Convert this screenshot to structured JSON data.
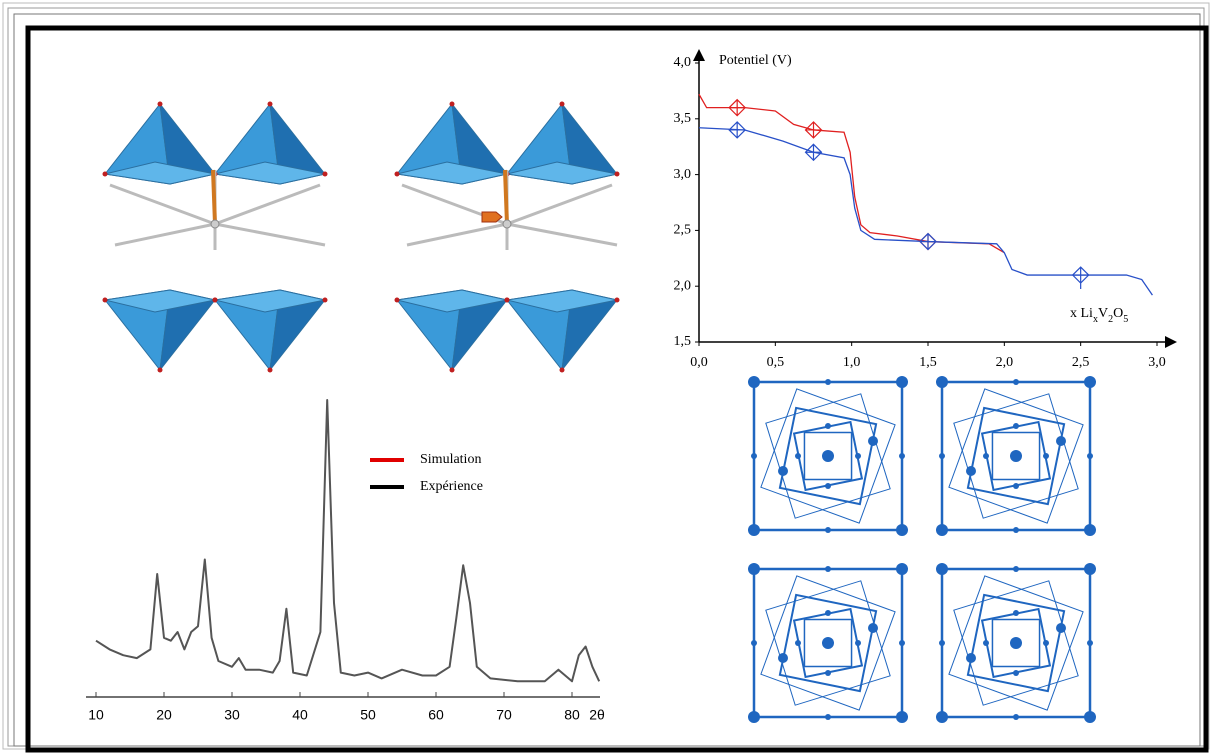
{
  "chart_data": [
    {
      "type": "line",
      "y_label": "Potentiel (V)",
      "x_label_parts": [
        "x Li",
        "x",
        "V",
        "2",
        "O",
        "5"
      ],
      "xlim": [
        0,
        3
      ],
      "ylim": [
        1.5,
        4
      ],
      "xticks": [
        {
          "value": 0,
          "label": "0,0"
        },
        {
          "value": 0.5,
          "label": "0,5"
        },
        {
          "value": 1,
          "label": "1,0"
        },
        {
          "value": 1.5,
          "label": "1,5"
        },
        {
          "value": 2,
          "label": "2,0"
        },
        {
          "value": 2.5,
          "label": "2,5"
        },
        {
          "value": 3,
          "label": "3,0"
        }
      ],
      "yticks": [
        {
          "value": 1.5,
          "label": "1,5"
        },
        {
          "value": 2,
          "label": "2,0"
        },
        {
          "value": 2.5,
          "label": "2,5"
        },
        {
          "value": 3,
          "label": "3,0"
        },
        {
          "value": 3.5,
          "label": "3,5"
        },
        {
          "value": 4,
          "label": "4,0"
        }
      ],
      "series": [
        {
          "color": "#e02020",
          "x": [
            0,
            0.05,
            0.3,
            0.5,
            0.62,
            0.75,
            0.95,
            0.99,
            1.02,
            1.06,
            1.12,
            1.3,
            1.5,
            1.9,
            2.0
          ],
          "values": [
            3.72,
            3.6,
            3.6,
            3.57,
            3.45,
            3.4,
            3.38,
            3.2,
            2.8,
            2.55,
            2.48,
            2.45,
            2.4,
            2.38,
            2.3
          ]
        },
        {
          "color": "#2850c8",
          "x": [
            0,
            0.3,
            0.55,
            0.75,
            0.95,
            0.99,
            1.02,
            1.06,
            1.15,
            1.5,
            1.95,
            2.0,
            2.05,
            2.15,
            2.5,
            2.8,
            2.9,
            2.97
          ],
          "values": [
            3.42,
            3.4,
            3.3,
            3.2,
            3.15,
            3.0,
            2.7,
            2.5,
            2.42,
            2.4,
            2.38,
            2.3,
            2.15,
            2.1,
            2.1,
            2.1,
            2.06,
            1.92
          ]
        }
      ],
      "markers": [
        {
          "color": "#e02020",
          "x": [
            0.25,
            0.75,
            1.5
          ],
          "values": [
            3.6,
            3.4,
            2.4
          ]
        },
        {
          "color": "#2850c8",
          "x": [
            0.25,
            0.75,
            1.5,
            2.5
          ],
          "values": [
            3.4,
            3.2,
            2.4,
            2.1
          ]
        }
      ]
    },
    {
      "type": "line",
      "x_label": "2θ",
      "xlim": [
        10,
        80
      ],
      "ylim": [
        0,
        100
      ],
      "xticks": [
        10,
        20,
        30,
        40,
        50,
        60,
        70,
        80
      ],
      "legend": [
        {
          "name": "Simulation",
          "color": "#e00000"
        },
        {
          "name": "Expérience",
          "color": "#000000"
        }
      ],
      "series": [
        {
          "color": "#555555",
          "x": [
            10,
            12,
            14,
            16,
            18,
            19,
            20,
            21,
            22,
            23,
            24,
            25,
            26,
            27,
            28,
            30,
            31,
            32,
            34,
            36,
            37,
            38,
            39,
            41,
            43,
            44,
            45,
            46,
            48,
            50,
            52,
            55,
            58,
            60,
            62,
            63,
            64,
            65,
            66,
            68,
            72,
            76,
            78,
            80,
            81,
            82,
            83,
            84
          ],
          "values": [
            17,
            14,
            12,
            11,
            14,
            40,
            18,
            17,
            20,
            14,
            20,
            22,
            45,
            18,
            10,
            8,
            11,
            7,
            7,
            6,
            10,
            28,
            6,
            5,
            20,
            100,
            30,
            6,
            5,
            6,
            4,
            7,
            5,
            5,
            8,
            25,
            43,
            30,
            8,
            4,
            3,
            3,
            7,
            3,
            12,
            15,
            8,
            3
          ]
        }
      ]
    }
  ]
}
